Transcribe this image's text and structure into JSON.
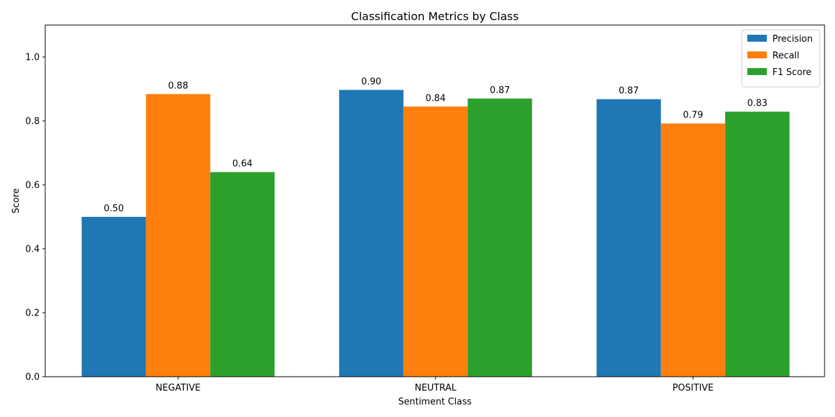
{
  "chart_data": {
    "type": "bar",
    "title": "Classification Metrics by Class",
    "xlabel": "Sentiment Class",
    "ylabel": "Score",
    "categories": [
      "NEGATIVE",
      "NEUTRAL",
      "POSITIVE"
    ],
    "series": [
      {
        "name": "Precision",
        "color": "#1f77b4",
        "values": [
          0.5,
          0.897,
          0.868
        ],
        "labels": [
          "0.50",
          "0.90",
          "0.87"
        ]
      },
      {
        "name": "Recall",
        "color": "#ff7f0e",
        "values": [
          0.884,
          0.845,
          0.792
        ],
        "labels": [
          "0.88",
          "0.84",
          "0.79"
        ]
      },
      {
        "name": "F1 Score",
        "color": "#2ca02c",
        "values": [
          0.64,
          0.87,
          0.829
        ],
        "labels": [
          "0.64",
          "0.87",
          "0.83"
        ]
      }
    ],
    "ylim": [
      0,
      1.1
    ],
    "yticks": [
      0.0,
      0.2,
      0.4,
      0.6,
      0.8,
      1.0
    ],
    "ytick_labels": [
      "0.0",
      "0.2",
      "0.4",
      "0.6",
      "0.8",
      "1.0"
    ],
    "grid": false,
    "legend_position": "top-right"
  }
}
